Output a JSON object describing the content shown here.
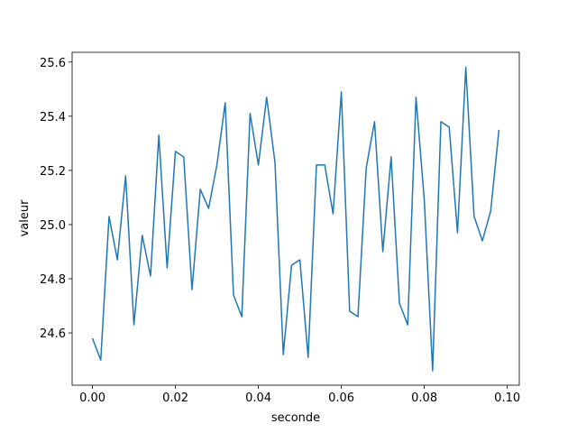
{
  "chart_data": {
    "type": "line",
    "xlabel": "seconde",
    "ylabel": "valeur",
    "x": [
      0,
      0.002,
      0.004,
      0.006,
      0.008,
      0.01,
      0.012,
      0.014,
      0.016,
      0.018,
      0.02,
      0.022,
      0.024,
      0.026,
      0.028,
      0.03,
      0.032,
      0.034,
      0.036,
      0.038,
      0.04,
      0.042,
      0.044,
      0.046,
      0.048,
      0.05,
      0.052,
      0.054,
      0.056,
      0.058,
      0.06,
      0.062,
      0.064,
      0.066,
      0.068,
      0.07,
      0.072,
      0.074,
      0.076,
      0.078,
      0.08,
      0.082,
      0.084,
      0.086,
      0.088,
      0.09,
      0.092,
      0.094,
      0.096,
      0.098
    ],
    "series": [
      {
        "color": "#1f77b4",
        "values": [
          24.58,
          24.5,
          25.03,
          24.87,
          25.18,
          24.63,
          24.96,
          24.81,
          25.33,
          24.84,
          25.27,
          25.25,
          24.76,
          25.13,
          25.06,
          25.22,
          25.45,
          24.74,
          24.66,
          25.41,
          25.22,
          25.47,
          25.23,
          24.52,
          24.85,
          24.87,
          24.51,
          25.22,
          25.22,
          25.04,
          25.49,
          24.68,
          24.66,
          25.21,
          25.38,
          24.9,
          25.25,
          24.71,
          24.63,
          25.47,
          25.09,
          24.46,
          25.38,
          25.36,
          24.97,
          25.58,
          25.03,
          24.94,
          25.05,
          25.35
        ]
      }
    ],
    "xlim": [
      -0.0049,
      0.1029
    ],
    "xticks": [
      {
        "value": 0,
        "label": "0.00"
      },
      0.02,
      0.04,
      0.06,
      0.08,
      {
        "value": 0.1,
        "label": "0.10"
      }
    ],
    "ylim": [
      24.407,
      25.636
    ],
    "yticks": [
      24.6,
      24.8,
      {
        "value": 25,
        "label": "25.0"
      },
      25.2,
      25.4,
      25.6
    ]
  }
}
